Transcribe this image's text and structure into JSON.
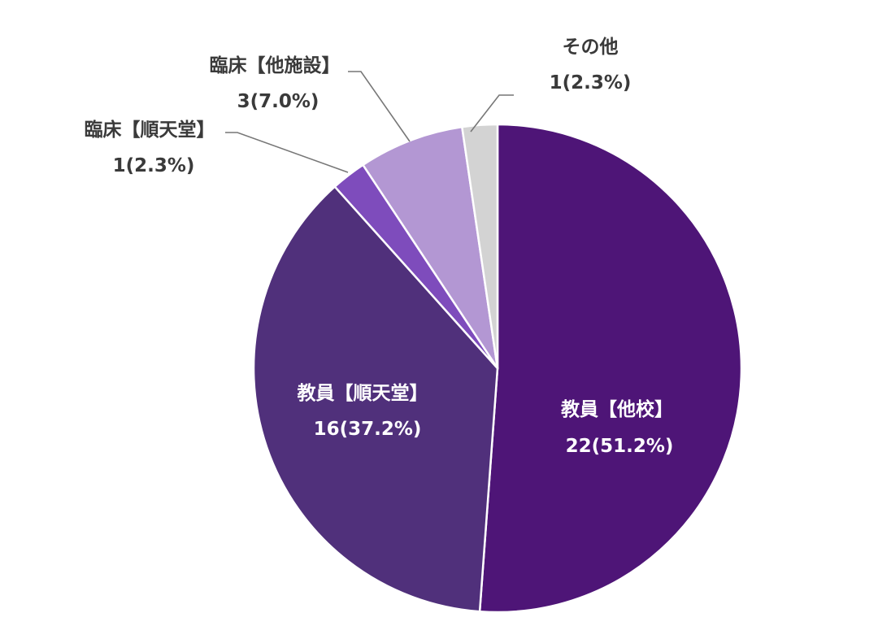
{
  "chart_data": {
    "type": "pie",
    "slices": [
      {
        "name": "教員【他校】",
        "value": 22,
        "percent_label": "22(51.2%)",
        "color": "#4e1577"
      },
      {
        "name": "教員【順天堂】",
        "value": 16,
        "percent_label": "16(37.2%)",
        "color": "#50307b"
      },
      {
        "name": "臨床【順天堂】",
        "value": 1,
        "percent_label": "1(2.3%)",
        "color": "#7e4cbc"
      },
      {
        "name": "臨床【他施設】",
        "value": 3,
        "percent_label": "3(7.0%)",
        "color": "#b397d3"
      },
      {
        "name": "その他",
        "value": 1,
        "percent_label": "1(2.3%)",
        "color": "#d3d3d3"
      }
    ]
  }
}
